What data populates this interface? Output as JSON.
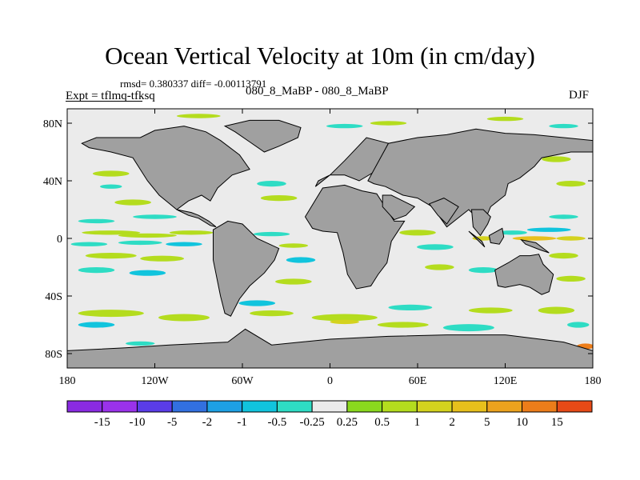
{
  "figure": {
    "title": "Ocean Vertical Velocity at 10m (in cm/day)",
    "stats": "rmsd= 0.380337 diff= -0.00113791",
    "experiment": "Expt = tflmq-tfksq",
    "subtitle": "080_8_MaBP - 080_8_MaBP",
    "season": "DJF"
  },
  "chart_data": {
    "type": "heatmap",
    "title": "Ocean Vertical Velocity at 10m (in cm/day)",
    "projection": "cylindrical equidistant",
    "x_range": [
      -180,
      180
    ],
    "y_range": [
      -90,
      90
    ],
    "x_ticks": [
      {
        "value": -180,
        "label": "180"
      },
      {
        "value": -120,
        "label": "120W"
      },
      {
        "value": -60,
        "label": "60W"
      },
      {
        "value": 0,
        "label": "0"
      },
      {
        "value": 60,
        "label": "60E"
      },
      {
        "value": 120,
        "label": "120E"
      },
      {
        "value": 180,
        "label": "180"
      }
    ],
    "y_ticks": [
      {
        "value": 80,
        "label": "80N"
      },
      {
        "value": 40,
        "label": "40N"
      },
      {
        "value": 0,
        "label": "0"
      },
      {
        "value": -40,
        "label": "40S"
      },
      {
        "value": -80,
        "label": "80S"
      }
    ],
    "colorbar": {
      "labels": [
        "-15",
        "-10",
        "-5",
        "-2",
        "-1",
        "-0.5",
        "-0.25",
        "0.25",
        "0.5",
        "1",
        "2",
        "5",
        "10",
        "15"
      ],
      "colors": [
        "#9a32ea",
        "#5a3ce8",
        "#3270e0",
        "#1da0e4",
        "#11c4dd",
        "#2edcc4",
        "#ebebeb",
        "#8ad81e",
        "#b4dc1e",
        "#d4d21e",
        "#e7c01c",
        "#eca21d",
        "#ec7d1a",
        "#e64a17"
      ]
    },
    "land_color": "#a0a0a0",
    "neutral_color": "#ebebeb",
    "land": [
      {
        "name": "North America",
        "lon": [
          -170,
          -160,
          -145,
          -130,
          -120,
          -100,
          -85,
          -75,
          -62,
          -55,
          -67,
          -77,
          -82,
          -88,
          -97,
          -105,
          -117,
          -125,
          -135,
          -150,
          -165
        ],
        "lat": [
          66,
          70,
          70,
          70,
          75,
          78,
          74,
          68,
          58,
          48,
          44,
          35,
          26,
          30,
          26,
          20,
          30,
          40,
          56,
          60,
          63
        ]
      },
      {
        "name": "Greenland",
        "lon": [
          -72,
          -55,
          -35,
          -20,
          -22,
          -35,
          -45,
          -55,
          -65
        ],
        "lat": [
          78,
          82,
          82,
          77,
          70,
          64,
          60,
          67,
          74
        ]
      },
      {
        "name": "Central America",
        "lon": [
          -105,
          -95,
          -90,
          -83,
          -78,
          -82,
          -90,
          -97
        ],
        "lat": [
          20,
          18,
          16,
          12,
          8,
          9,
          14,
          16
        ]
      },
      {
        "name": "South America",
        "lon": [
          -80,
          -70,
          -60,
          -50,
          -35,
          -38,
          -45,
          -55,
          -62,
          -68,
          -72,
          -75,
          -80
        ],
        "lat": [
          6,
          12,
          10,
          0,
          -7,
          -15,
          -24,
          -33,
          -42,
          -54,
          -52,
          -40,
          -15
        ]
      },
      {
        "name": "Europe",
        "lon": [
          -10,
          0,
          10,
          25,
          40,
          30,
          20,
          10,
          0,
          -8
        ],
        "lat": [
          36,
          44,
          54,
          70,
          66,
          46,
          40,
          44,
          44,
          40
        ]
      },
      {
        "name": "Asia",
        "lon": [
          26,
          40,
          60,
          80,
          100,
          120,
          140,
          160,
          180,
          180,
          165,
          145,
          140,
          130,
          122,
          120,
          110,
          105,
          95,
          80,
          70,
          60,
          50,
          38,
          30
        ],
        "lat": [
          40,
          66,
          70,
          72,
          76,
          73,
          72,
          70,
          68,
          60,
          60,
          56,
          50,
          42,
          38,
          30,
          22,
          10,
          20,
          8,
          22,
          28,
          30,
          36,
          38
        ]
      },
      {
        "name": "Africa",
        "lon": [
          -17,
          -5,
          10,
          22,
          32,
          44,
          51,
          42,
          39,
          33,
          28,
          18,
          12,
          9,
          5,
          -5,
          -12,
          -17
        ],
        "lat": [
          15,
          35,
          37,
          33,
          31,
          12,
          12,
          -2,
          -17,
          -25,
          -33,
          -35,
          -25,
          -10,
          4,
          5,
          7,
          15
        ]
      },
      {
        "name": "Arabia",
        "lon": [
          36,
          42,
          50,
          58,
          52,
          44,
          36
        ],
        "lat": [
          30,
          30,
          26,
          22,
          16,
          13,
          22
        ]
      },
      {
        "name": "India",
        "lon": [
          68,
          78,
          88,
          80,
          74
        ],
        "lat": [
          24,
          28,
          22,
          10,
          16
        ]
      },
      {
        "name": "Southeast Asia",
        "lon": [
          97,
          105,
          110,
          108,
          103,
          98
        ],
        "lat": [
          20,
          20,
          15,
          10,
          2,
          8
        ]
      },
      {
        "name": "Borneo",
        "lon": [
          109,
          118,
          119,
          116,
          110
        ],
        "lat": [
          2,
          7,
          1,
          -4,
          -3
        ]
      },
      {
        "name": "Sumatra",
        "lon": [
          95,
          104,
          106,
          100
        ],
        "lat": [
          5,
          -2,
          -6,
          0
        ]
      },
      {
        "name": "New Guinea",
        "lon": [
          131,
          141,
          150,
          144,
          134
        ],
        "lat": [
          -1,
          -3,
          -10,
          -8,
          -4
        ]
      },
      {
        "name": "Australia",
        "lon": [
          113,
          122,
          130,
          137,
          143,
          146,
          153,
          150,
          145,
          137,
          130,
          120,
          115
        ],
        "lat": [
          -22,
          -17,
          -12,
          -12,
          -11,
          -18,
          -25,
          -37,
          -39,
          -34,
          -32,
          -34,
          -33
        ]
      },
      {
        "name": "Antarctica",
        "lon": [
          -180,
          -140,
          -110,
          -70,
          -58,
          -40,
          0,
          40,
          80,
          120,
          160,
          180,
          180,
          -180
        ],
        "lat": [
          -78,
          -76,
          -74,
          -72,
          -63,
          -74,
          -70,
          -68,
          -67,
          -67,
          -72,
          -78,
          -90,
          -90
        ]
      }
    ],
    "anomalies": [
      {
        "lon": -150,
        "lat": 4,
        "w": 40,
        "h": 3,
        "bin": "0.5"
      },
      {
        "lon": -125,
        "lat": 2,
        "w": 40,
        "h": 3,
        "bin": "0.5"
      },
      {
        "lon": -95,
        "lat": 4,
        "w": 30,
        "h": 3,
        "bin": "0.5"
      },
      {
        "lon": -165,
        "lat": -4,
        "w": 25,
        "h": 3,
        "bin": "-0.5"
      },
      {
        "lon": -130,
        "lat": -3,
        "w": 30,
        "h": 3,
        "bin": "-0.5"
      },
      {
        "lon": -100,
        "lat": -4,
        "w": 25,
        "h": 3,
        "bin": "-1"
      },
      {
        "lon": -150,
        "lat": -12,
        "w": 35,
        "h": 4,
        "bin": "0.5"
      },
      {
        "lon": -115,
        "lat": -14,
        "w": 30,
        "h": 4,
        "bin": "0.5"
      },
      {
        "lon": -160,
        "lat": -22,
        "w": 25,
        "h": 4,
        "bin": "-0.5"
      },
      {
        "lon": -125,
        "lat": -24,
        "w": 25,
        "h": 4,
        "bin": "-1"
      },
      {
        "lon": -160,
        "lat": 12,
        "w": 25,
        "h": 3,
        "bin": "-0.5"
      },
      {
        "lon": -120,
        "lat": 15,
        "w": 30,
        "h": 3,
        "bin": "-0.5"
      },
      {
        "lon": -135,
        "lat": 25,
        "w": 25,
        "h": 4,
        "bin": "0.5"
      },
      {
        "lon": -150,
        "lat": 45,
        "w": 25,
        "h": 4,
        "bin": "0.5"
      },
      {
        "lon": -150,
        "lat": 36,
        "w": 15,
        "h": 3,
        "bin": "-0.5"
      },
      {
        "lon": -40,
        "lat": 38,
        "w": 20,
        "h": 4,
        "bin": "-0.5"
      },
      {
        "lon": -35,
        "lat": 28,
        "w": 25,
        "h": 4,
        "bin": "0.5"
      },
      {
        "lon": -40,
        "lat": 3,
        "w": 25,
        "h": 3,
        "bin": "-0.5"
      },
      {
        "lon": -25,
        "lat": -5,
        "w": 20,
        "h": 3,
        "bin": "0.5"
      },
      {
        "lon": -20,
        "lat": -15,
        "w": 20,
        "h": 4,
        "bin": "-1"
      },
      {
        "lon": -25,
        "lat": -30,
        "w": 25,
        "h": 4,
        "bin": "0.5"
      },
      {
        "lon": 60,
        "lat": 4,
        "w": 25,
        "h": 4,
        "bin": "0.5"
      },
      {
        "lon": 72,
        "lat": -6,
        "w": 25,
        "h": 4,
        "bin": "-0.5"
      },
      {
        "lon": 75,
        "lat": -20,
        "w": 20,
        "h": 4,
        "bin": "0.5"
      },
      {
        "lon": 105,
        "lat": 0,
        "w": 15,
        "h": 3,
        "bin": "1"
      },
      {
        "lon": 140,
        "lat": 0,
        "w": 30,
        "h": 3,
        "bin": "2"
      },
      {
        "lon": 165,
        "lat": 0,
        "w": 20,
        "h": 3,
        "bin": "1"
      },
      {
        "lon": 125,
        "lat": 4,
        "w": 20,
        "h": 3,
        "bin": "-0.5"
      },
      {
        "lon": 150,
        "lat": 6,
        "w": 30,
        "h": 3,
        "bin": "-1"
      },
      {
        "lon": 160,
        "lat": 15,
        "w": 20,
        "h": 3,
        "bin": "-0.5"
      },
      {
        "lon": 165,
        "lat": 38,
        "w": 20,
        "h": 4,
        "bin": "0.5"
      },
      {
        "lon": 155,
        "lat": 55,
        "w": 20,
        "h": 4,
        "bin": "0.5"
      },
      {
        "lon": 160,
        "lat": -12,
        "w": 20,
        "h": 4,
        "bin": "0.5"
      },
      {
        "lon": 105,
        "lat": -22,
        "w": 20,
        "h": 4,
        "bin": "-0.5"
      },
      {
        "lon": 165,
        "lat": -28,
        "w": 20,
        "h": 4,
        "bin": "0.5"
      },
      {
        "lon": -150,
        "lat": -52,
        "w": 45,
        "h": 5,
        "bin": "0.5"
      },
      {
        "lon": -100,
        "lat": -55,
        "w": 35,
        "h": 5,
        "bin": "0.5"
      },
      {
        "lon": -160,
        "lat": -60,
        "w": 25,
        "h": 4,
        "bin": "-1"
      },
      {
        "lon": -50,
        "lat": -45,
        "w": 25,
        "h": 4,
        "bin": "-1"
      },
      {
        "lon": -40,
        "lat": -52,
        "w": 30,
        "h": 4,
        "bin": "0.5"
      },
      {
        "lon": 10,
        "lat": -55,
        "w": 45,
        "h": 5,
        "bin": "0.5"
      },
      {
        "lon": 10,
        "lat": -58,
        "w": 20,
        "h": 3,
        "bin": "1"
      },
      {
        "lon": 55,
        "lat": -48,
        "w": 30,
        "h": 4,
        "bin": "-0.5"
      },
      {
        "lon": 50,
        "lat": -60,
        "w": 35,
        "h": 4,
        "bin": "0.5"
      },
      {
        "lon": 95,
        "lat": -62,
        "w": 35,
        "h": 5,
        "bin": "-0.5"
      },
      {
        "lon": 110,
        "lat": -50,
        "w": 30,
        "h": 4,
        "bin": "0.5"
      },
      {
        "lon": 155,
        "lat": -50,
        "w": 25,
        "h": 5,
        "bin": "0.5"
      },
      {
        "lon": 170,
        "lat": -60,
        "w": 15,
        "h": 4,
        "bin": "-0.5"
      },
      {
        "lon": 175,
        "lat": -75,
        "w": 12,
        "h": 4,
        "bin": "10"
      },
      {
        "lon": -130,
        "lat": -73,
        "w": 20,
        "h": 3,
        "bin": "-0.5"
      },
      {
        "lon": -90,
        "lat": 85,
        "w": 30,
        "h": 3,
        "bin": "0.5"
      },
      {
        "lon": 10,
        "lat": 78,
        "w": 25,
        "h": 3,
        "bin": "-0.5"
      },
      {
        "lon": 40,
        "lat": 80,
        "w": 25,
        "h": 3,
        "bin": "0.5"
      },
      {
        "lon": 120,
        "lat": 83,
        "w": 25,
        "h": 3,
        "bin": "0.5"
      },
      {
        "lon": 160,
        "lat": 78,
        "w": 20,
        "h": 3,
        "bin": "-0.5"
      },
      {
        "lon": -110,
        "lat": 68,
        "w": 15,
        "h": 3,
        "bin": "0.5"
      },
      {
        "lon": 20,
        "lat": 20,
        "w": 15,
        "h": 3,
        "bin": "0.5"
      }
    ]
  }
}
